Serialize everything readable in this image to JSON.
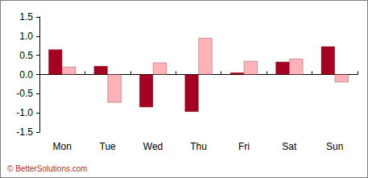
{
  "chart_data": {
    "type": "bar",
    "categories": [
      "Mon",
      "Tue",
      "Wed",
      "Thu",
      "Fri",
      "Sat",
      "Sun"
    ],
    "series": [
      {
        "color": "#a50021",
        "values": [
          0.65,
          0.22,
          -0.85,
          -0.97,
          0.05,
          0.33,
          0.73
        ]
      },
      {
        "color": "#ffb3b9",
        "values": [
          0.2,
          -0.73,
          0.31,
          0.95,
          0.35,
          0.41,
          -0.2
        ]
      }
    ],
    "ylim": [
      -1.5,
      1.5
    ],
    "yticks": [
      -1.5,
      {
        "value": -1,
        "label": "-1.0"
      },
      -0.5,
      {
        "value": 0,
        "label": "0.0"
      },
      0.5,
      {
        "value": 1,
        "label": "1.0"
      },
      1.5
    ],
    "grid": false,
    "annotation": "© BetterSolutions.com"
  }
}
